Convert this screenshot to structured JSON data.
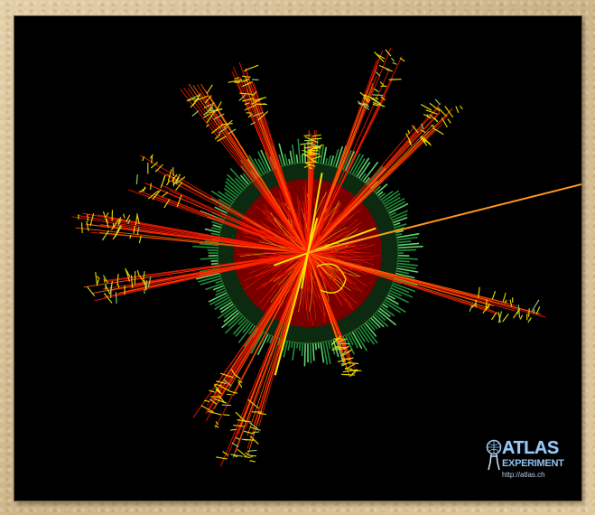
{
  "image": {
    "subject": "particle collision event display",
    "colors": {
      "frame": "#d9c29a",
      "background": "#000000",
      "calorimeter_inner": "#7a0000",
      "calorimeter_outer": "#1f8f3a",
      "tracks": "#ff1a00",
      "jet_hits": "#f2e600",
      "missing_energy": "#ff9a1a"
    }
  },
  "logo": {
    "name": "ATLAS",
    "subtitle": "EXPERIMENT",
    "url": "http://atlas.ch",
    "color": "#9ac8f0"
  }
}
